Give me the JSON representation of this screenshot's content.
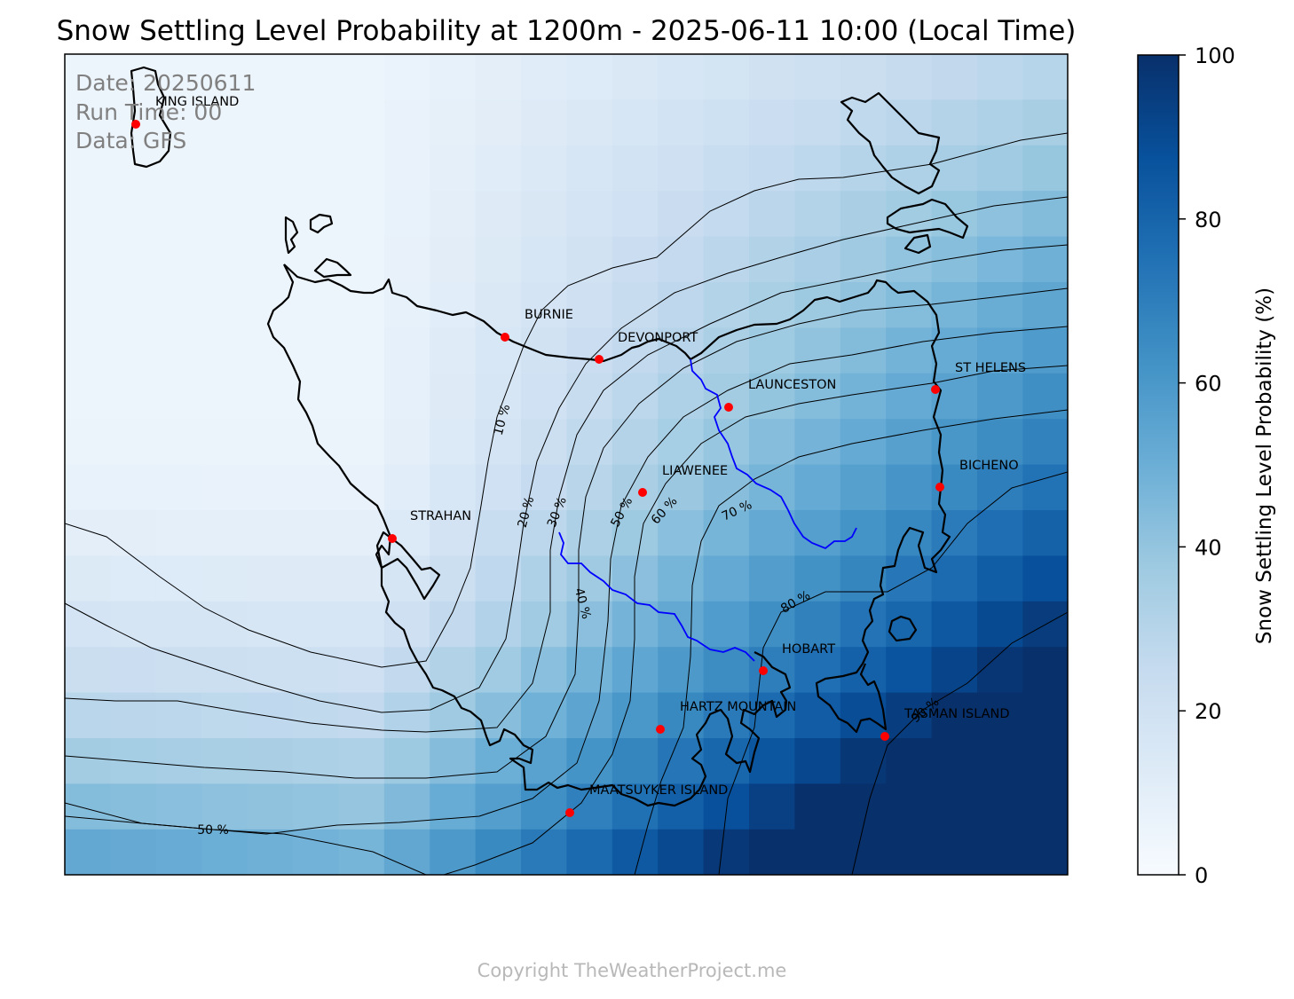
{
  "title": "Snow Settling Level Probability at 1200m - 2025-06-11 10:00 (Local Time)",
  "info": {
    "date": "Date: 20250611",
    "run_time": "Run Time: 00",
    "data": "Data: GFS"
  },
  "colorbar": {
    "label": "Snow Settling Level Probability (%)",
    "ticks": [
      "0",
      "20",
      "40",
      "60",
      "80",
      "100"
    ],
    "min": 0,
    "max": 100,
    "colormap": "Blues",
    "colors": [
      "#f7fbff",
      "#deebf7",
      "#c6dbef",
      "#9ecae1",
      "#6baed6",
      "#4292c6",
      "#2171b5",
      "#08519c",
      "#08306b"
    ]
  },
  "locations": [
    {
      "name": "KING ISLAND"
    },
    {
      "name": "BURNIE"
    },
    {
      "name": "DEVONPORT"
    },
    {
      "name": "LAUNCESTON"
    },
    {
      "name": "ST HELENS"
    },
    {
      "name": "BICHENO"
    },
    {
      "name": "LIAWENEE"
    },
    {
      "name": "STRAHAN"
    },
    {
      "name": "HOBART"
    },
    {
      "name": "HARTZ MOUNTAIN"
    },
    {
      "name": "TASMAN ISLAND"
    },
    {
      "name": "MAATSUYKER ISLAND"
    }
  ],
  "marker_color": "#ff0000",
  "river_color": "#0000ff",
  "contour_labels": [
    "10 %",
    "20 %",
    "30 %",
    "40 %",
    "50 %",
    "60 %",
    "70 %",
    "80 %",
    "50 %",
    "90 %"
  ],
  "copyright": "Copyright TheWeatherProject.me"
}
